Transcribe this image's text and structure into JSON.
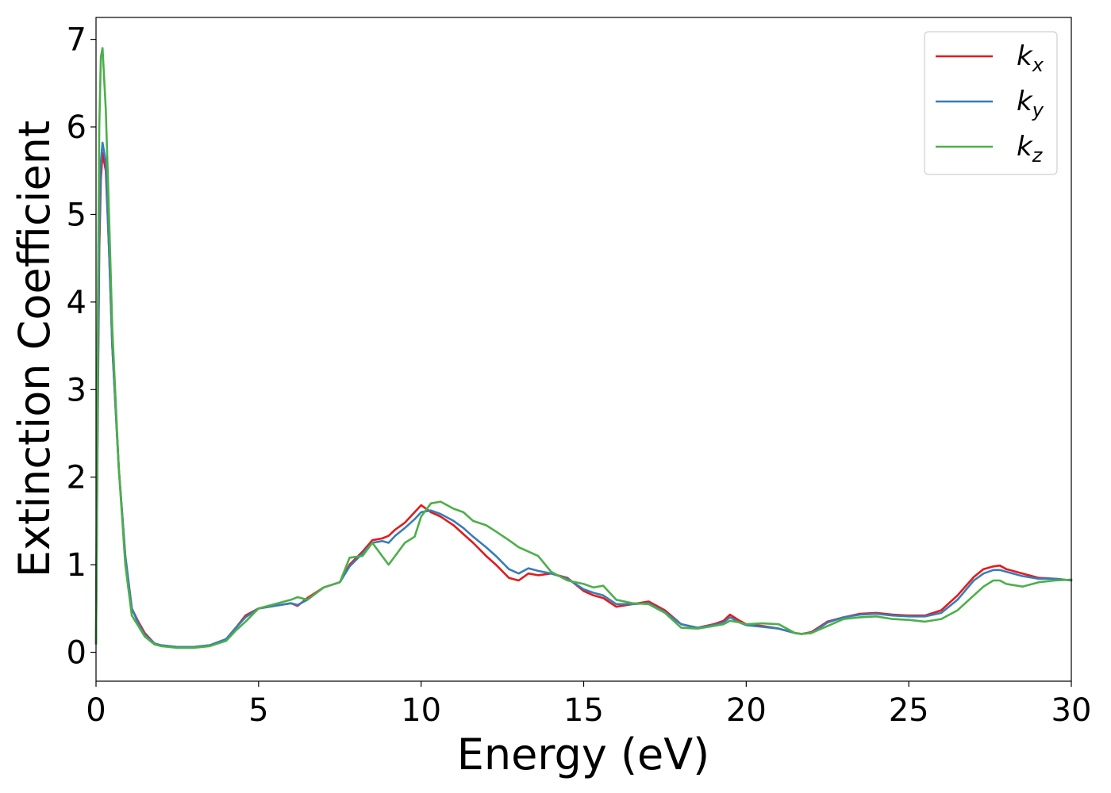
{
  "chart_data": {
    "type": "line",
    "xlabel": "Energy (eV)",
    "ylabel": "Extinction Coefficient",
    "xlim": [
      0,
      30
    ],
    "ylim": [
      -0.33,
      7.25
    ],
    "xticks": [
      "0",
      "5",
      "10",
      "15",
      "20",
      "25",
      "30"
    ],
    "yticks": [
      "0",
      "1",
      "2",
      "3",
      "4",
      "5",
      "6",
      "7"
    ],
    "grid": false,
    "legend_position": "top-right",
    "series": [
      {
        "name": "k",
        "subscript": "x",
        "color": "#e41a1c",
        "x": [
          0,
          0.05,
          0.1,
          0.15,
          0.2,
          0.3,
          0.4,
          0.5,
          0.7,
          0.9,
          1.1,
          1.3,
          1.5,
          1.8,
          2.0,
          2.5,
          3.0,
          3.5,
          4.0,
          4.3,
          4.6,
          5.0,
          5.5,
          6.0,
          6.2,
          6.5,
          7.0,
          7.5,
          7.8,
          8.2,
          8.5,
          8.8,
          9.0,
          9.2,
          9.5,
          9.8,
          10.0,
          10.3,
          10.6,
          11.0,
          11.3,
          11.6,
          12.0,
          12.3,
          12.7,
          13.0,
          13.3,
          13.6,
          14.0,
          14.5,
          15.0,
          15.3,
          15.6,
          16.0,
          16.5,
          17.0,
          17.5,
          18.0,
          18.5,
          19.0,
          19.3,
          19.5,
          19.8,
          20.0,
          20.5,
          21.0,
          21.5,
          21.7,
          22.0,
          22.5,
          23.0,
          23.5,
          24.0,
          24.5,
          25.0,
          25.5,
          26.0,
          26.5,
          27.0,
          27.3,
          27.6,
          27.8,
          28.0,
          28.5,
          29.0,
          29.5,
          30.0
        ],
        "y": [
          0.1,
          2.5,
          4.6,
          5.4,
          5.7,
          5.5,
          4.6,
          3.5,
          2.1,
          1.1,
          0.5,
          0.35,
          0.22,
          0.1,
          0.08,
          0.06,
          0.06,
          0.08,
          0.15,
          0.28,
          0.42,
          0.5,
          0.53,
          0.56,
          0.53,
          0.62,
          0.74,
          0.8,
          1.0,
          1.15,
          1.28,
          1.3,
          1.33,
          1.4,
          1.48,
          1.6,
          1.68,
          1.6,
          1.55,
          1.45,
          1.35,
          1.25,
          1.1,
          1.0,
          0.85,
          0.82,
          0.9,
          0.88,
          0.9,
          0.85,
          0.7,
          0.65,
          0.62,
          0.52,
          0.55,
          0.58,
          0.48,
          0.32,
          0.28,
          0.32,
          0.36,
          0.43,
          0.36,
          0.32,
          0.3,
          0.27,
          0.22,
          0.21,
          0.23,
          0.35,
          0.4,
          0.44,
          0.45,
          0.43,
          0.42,
          0.42,
          0.48,
          0.65,
          0.86,
          0.95,
          0.98,
          0.99,
          0.95,
          0.9,
          0.85,
          0.84,
          0.82
        ]
      },
      {
        "name": "k",
        "subscript": "y",
        "color": "#377eb8",
        "x": [
          0,
          0.05,
          0.1,
          0.15,
          0.2,
          0.3,
          0.4,
          0.5,
          0.7,
          0.9,
          1.1,
          1.3,
          1.5,
          1.8,
          2.0,
          2.5,
          3.0,
          3.5,
          4.0,
          4.3,
          4.6,
          5.0,
          5.5,
          6.0,
          6.2,
          6.5,
          7.0,
          7.5,
          7.8,
          8.2,
          8.5,
          8.8,
          9.0,
          9.2,
          9.5,
          9.8,
          10.0,
          10.3,
          10.6,
          11.0,
          11.3,
          11.6,
          12.0,
          12.3,
          12.7,
          13.0,
          13.3,
          13.6,
          14.0,
          14.5,
          15.0,
          15.3,
          15.6,
          16.0,
          16.5,
          17.0,
          17.5,
          18.0,
          18.5,
          19.0,
          19.3,
          19.5,
          19.8,
          20.0,
          20.5,
          21.0,
          21.5,
          21.7,
          22.0,
          22.5,
          23.0,
          23.5,
          24.0,
          24.5,
          25.0,
          25.5,
          26.0,
          26.5,
          27.0,
          27.3,
          27.6,
          27.8,
          28.0,
          28.5,
          29.0,
          29.5,
          30.0
        ],
        "y": [
          0.1,
          2.7,
          4.8,
          5.6,
          5.82,
          5.6,
          4.6,
          3.5,
          2.1,
          1.1,
          0.5,
          0.33,
          0.2,
          0.1,
          0.08,
          0.06,
          0.06,
          0.08,
          0.15,
          0.28,
          0.4,
          0.5,
          0.53,
          0.56,
          0.54,
          0.6,
          0.74,
          0.8,
          0.98,
          1.13,
          1.25,
          1.27,
          1.25,
          1.33,
          1.42,
          1.52,
          1.6,
          1.62,
          1.58,
          1.5,
          1.42,
          1.32,
          1.2,
          1.1,
          0.95,
          0.9,
          0.96,
          0.93,
          0.9,
          0.84,
          0.72,
          0.68,
          0.65,
          0.55,
          0.55,
          0.56,
          0.46,
          0.32,
          0.28,
          0.31,
          0.34,
          0.4,
          0.34,
          0.31,
          0.29,
          0.27,
          0.22,
          0.21,
          0.22,
          0.34,
          0.4,
          0.43,
          0.44,
          0.42,
          0.41,
          0.41,
          0.45,
          0.6,
          0.82,
          0.9,
          0.94,
          0.94,
          0.92,
          0.87,
          0.84,
          0.84,
          0.82
        ]
      },
      {
        "name": "k",
        "subscript": "z",
        "color": "#4daf4a",
        "x": [
          0,
          0.05,
          0.1,
          0.15,
          0.2,
          0.3,
          0.4,
          0.5,
          0.7,
          0.9,
          1.1,
          1.3,
          1.5,
          1.8,
          2.0,
          2.5,
          3.0,
          3.5,
          4.0,
          4.3,
          4.6,
          5.0,
          5.5,
          6.0,
          6.2,
          6.5,
          7.0,
          7.5,
          7.8,
          8.2,
          8.5,
          8.8,
          9.0,
          9.2,
          9.5,
          9.8,
          10.0,
          10.3,
          10.6,
          11.0,
          11.3,
          11.6,
          12.0,
          12.3,
          12.7,
          13.0,
          13.3,
          13.6,
          14.0,
          14.5,
          15.0,
          15.3,
          15.6,
          16.0,
          16.5,
          17.0,
          17.5,
          18.0,
          18.5,
          19.0,
          19.3,
          19.5,
          19.8,
          20.0,
          20.5,
          21.0,
          21.5,
          21.7,
          22.0,
          22.5,
          23.0,
          23.5,
          24.0,
          24.5,
          25.0,
          25.5,
          26.0,
          26.5,
          27.0,
          27.3,
          27.6,
          27.8,
          28.0,
          28.5,
          29.0,
          29.5,
          30.0
        ],
        "y": [
          0.1,
          3.6,
          6.0,
          6.8,
          6.9,
          6.2,
          5.0,
          3.7,
          2.1,
          1.0,
          0.42,
          0.3,
          0.18,
          0.09,
          0.07,
          0.05,
          0.05,
          0.07,
          0.13,
          0.25,
          0.35,
          0.5,
          0.55,
          0.6,
          0.63,
          0.6,
          0.74,
          0.8,
          1.08,
          1.1,
          1.25,
          1.1,
          1.0,
          1.1,
          1.25,
          1.32,
          1.55,
          1.7,
          1.72,
          1.64,
          1.6,
          1.5,
          1.45,
          1.38,
          1.28,
          1.2,
          1.15,
          1.1,
          0.92,
          0.82,
          0.78,
          0.74,
          0.76,
          0.6,
          0.56,
          0.55,
          0.45,
          0.28,
          0.27,
          0.3,
          0.32,
          0.36,
          0.34,
          0.32,
          0.33,
          0.32,
          0.22,
          0.21,
          0.22,
          0.3,
          0.38,
          0.4,
          0.41,
          0.38,
          0.37,
          0.35,
          0.38,
          0.48,
          0.65,
          0.75,
          0.82,
          0.82,
          0.78,
          0.75,
          0.8,
          0.82,
          0.83
        ]
      }
    ]
  }
}
